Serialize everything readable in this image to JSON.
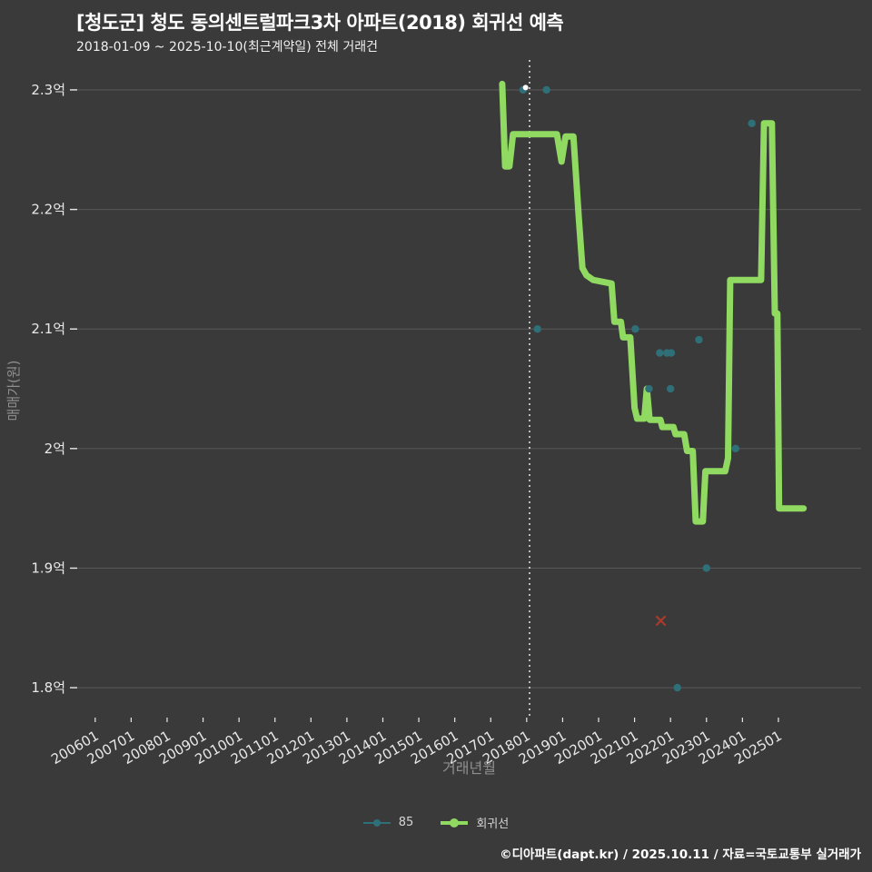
{
  "page": {
    "title": "[청도군] 청도 동의센트럴파크3차 아파트(2018) 회귀선 예측",
    "subtitle": "2018-01-09 ~ 2025-10-10(최근계약일) 전체 거래건",
    "footer_credit": "©디아파트(dapt.kr) / 2025.10.11 / 자료=국토교통부 실거래가"
  },
  "colors": {
    "background": "#3a3a3a",
    "grid": "#595959",
    "tick_label": "#e8e8e8",
    "axis_title": "#8f8f8f",
    "title_text": "#ffffff",
    "legend_text": "#d6d6d6",
    "scatter": "#2f6f78",
    "regression": "#90da62",
    "red_marker": "#a93b2e",
    "vline": "#dddddd",
    "highlight": "#ffffff"
  },
  "chart_data": {
    "type": "line",
    "title": "[청도군] 청도 동의센트럴파크3차 아파트(2018) 회귀선 예측",
    "xlabel": "거래년월",
    "ylabel": "매매가(원)",
    "legend": [
      "85",
      "회귀선"
    ],
    "legend_position": "bottom-center",
    "grid": "horizontal-only",
    "xlim": [
      2005.5,
      2027.3
    ],
    "ylim": [
      1.775,
      2.322
    ],
    "vline_x": 2018.08,
    "y_ticks": [
      {
        "label": "2.3억",
        "v": 2.3
      },
      {
        "label": "2.2억",
        "v": 2.2
      },
      {
        "label": "2.1억",
        "v": 2.1
      },
      {
        "label": "2억",
        "v": 2.0
      },
      {
        "label": "1.9억",
        "v": 1.9
      },
      {
        "label": "1.8억",
        "v": 1.8
      }
    ],
    "x_ticks": [
      {
        "label": "200601",
        "x": 2006
      },
      {
        "label": "200701",
        "x": 2007
      },
      {
        "label": "200801",
        "x": 2008
      },
      {
        "label": "200901",
        "x": 2009
      },
      {
        "label": "201001",
        "x": 2010
      },
      {
        "label": "201101",
        "x": 2011
      },
      {
        "label": "201201",
        "x": 2012
      },
      {
        "label": "201301",
        "x": 2013
      },
      {
        "label": "201401",
        "x": 2014
      },
      {
        "label": "201501",
        "x": 2015
      },
      {
        "label": "201601",
        "x": 2016
      },
      {
        "label": "201701",
        "x": 2017
      },
      {
        "label": "201801",
        "x": 2018
      },
      {
        "label": "201901",
        "x": 2019
      },
      {
        "label": "202001",
        "x": 2020
      },
      {
        "label": "202101",
        "x": 2021
      },
      {
        "label": "202201",
        "x": 2022
      },
      {
        "label": "202301",
        "x": 2023
      },
      {
        "label": "202401",
        "x": 2024
      },
      {
        "label": "202501",
        "x": 2025
      }
    ],
    "series": [
      {
        "name": "85",
        "type": "scatter",
        "color": "#2f6f78",
        "points": [
          [
            2017.9,
            2.3
          ],
          [
            2018.55,
            2.3
          ],
          [
            2018.3,
            2.1
          ],
          [
            2021.02,
            2.1
          ],
          [
            2021.7,
            2.08
          ],
          [
            2021.9,
            2.08
          ],
          [
            2022.02,
            2.08
          ],
          [
            2021.4,
            2.05
          ],
          [
            2022.0,
            2.05
          ],
          [
            2022.79,
            2.091
          ],
          [
            2023.81,
            2.0
          ],
          [
            2023.0,
            1.9
          ],
          [
            2022.19,
            1.8
          ],
          [
            2024.26,
            2.272
          ]
        ]
      },
      {
        "name": "회귀선",
        "type": "line",
        "color": "#90da62",
        "points": [
          [
            2017.32,
            2.305
          ],
          [
            2017.4,
            2.236
          ],
          [
            2017.52,
            2.236
          ],
          [
            2017.62,
            2.263
          ],
          [
            2018.84,
            2.263
          ],
          [
            2018.97,
            2.24
          ],
          [
            2019.08,
            2.261
          ],
          [
            2019.3,
            2.261
          ],
          [
            2019.45,
            2.193
          ],
          [
            2019.55,
            2.151
          ],
          [
            2019.66,
            2.145
          ],
          [
            2019.85,
            2.141
          ],
          [
            2020.36,
            2.138
          ],
          [
            2020.44,
            2.106
          ],
          [
            2020.62,
            2.106
          ],
          [
            2020.68,
            2.093
          ],
          [
            2020.88,
            2.093
          ],
          [
            2021.0,
            2.034
          ],
          [
            2021.07,
            2.025
          ],
          [
            2021.27,
            2.025
          ],
          [
            2021.34,
            2.05
          ],
          [
            2021.42,
            2.024
          ],
          [
            2021.72,
            2.024
          ],
          [
            2021.77,
            2.018
          ],
          [
            2022.08,
            2.018
          ],
          [
            2022.14,
            2.012
          ],
          [
            2022.38,
            2.012
          ],
          [
            2022.46,
            1.998
          ],
          [
            2022.62,
            1.998
          ],
          [
            2022.7,
            1.939
          ],
          [
            2022.9,
            1.939
          ],
          [
            2022.97,
            1.981
          ],
          [
            2023.52,
            1.981
          ],
          [
            2023.6,
            1.992
          ],
          [
            2023.66,
            2.141
          ],
          [
            2024.52,
            2.141
          ],
          [
            2024.6,
            2.272
          ],
          [
            2024.82,
            2.272
          ],
          [
            2024.9,
            2.113
          ],
          [
            2024.97,
            2.113
          ],
          [
            2025.02,
            1.95
          ],
          [
            2025.7,
            1.95
          ]
        ]
      }
    ],
    "extra_markers": {
      "red_x": [
        2021.73,
        1.856
      ],
      "white_dot": [
        2017.97,
        2.302
      ]
    }
  }
}
